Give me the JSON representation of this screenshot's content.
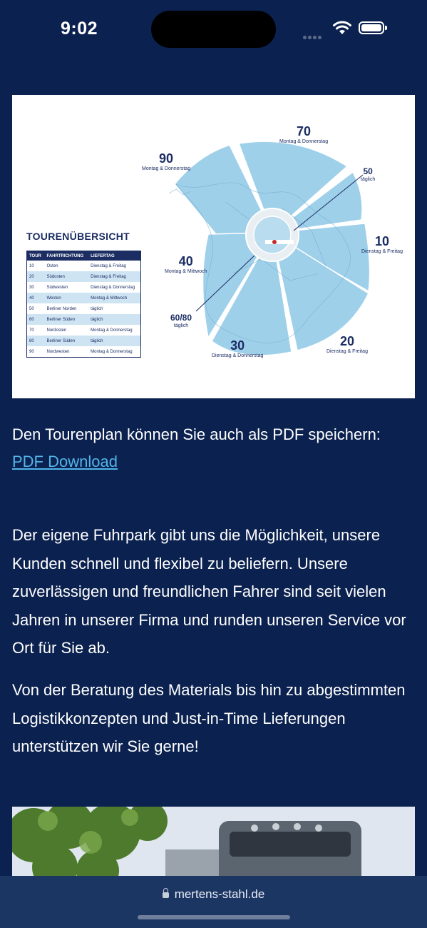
{
  "status_bar": {
    "time": "9:02"
  },
  "map": {
    "title": "TOURENÜBERSICHT",
    "table": {
      "headers": [
        "TOUR",
        "FAHRTRICHTUNG",
        "LIEFERTAG"
      ],
      "rows": [
        [
          "10",
          "Osten",
          "Dienstag & Freitag"
        ],
        [
          "20",
          "Südosten",
          "Dienstag & Freitag"
        ],
        [
          "30",
          "Südwesten",
          "Dienstag & Donnerstag"
        ],
        [
          "40",
          "Westen",
          "Montag & Mittwoch"
        ],
        [
          "50",
          "Berliner Norden",
          "täglich"
        ],
        [
          "60",
          "Berliner Süden",
          "täglich"
        ],
        [
          "70",
          "Nordosten",
          "Montag & Donnerstag"
        ],
        [
          "80",
          "Berliner Süden",
          "täglich"
        ],
        [
          "90",
          "Nordwesten",
          "Montag & Donnerstag"
        ]
      ]
    },
    "labels": {
      "t70": {
        "num": "70",
        "day": "Montag & Donnerstag"
      },
      "t90": {
        "num": "90",
        "day": "Montag & Donnerstag"
      },
      "t50": {
        "num": "50",
        "day": "täglich"
      },
      "t10": {
        "num": "10",
        "day": "Dienstag & Freitag"
      },
      "t40": {
        "num": "40",
        "day": "Montag & Mittwoch"
      },
      "t6080": {
        "num": "60/80",
        "day": "täglich"
      },
      "t30": {
        "num": "30",
        "day": "Dienstag & Donnerstag"
      },
      "t20": {
        "num": "20",
        "day": "Dienstag & Freitag"
      }
    }
  },
  "pdf": {
    "text": "Den Tourenplan können Sie auch als PDF speichern: ",
    "link_label": "PDF Download"
  },
  "paragraphs": {
    "p1": "Der eigene Fuhrpark gibt uns die Möglichkeit, unsere Kunden schnell und flexibel zu beliefern. Unsere zuverlässigen und freundlichen Fahrer sind seit vielen Jahren in unserer Firma und runden unseren Service vor Ort für Sie ab.",
    "p2": "Von der Beratung des Materials bis hin zu abgestimmten Logistikkonzepten und Just-in-Time Lieferungen unterstützen wir Sie gerne!"
  },
  "browser": {
    "url": "mertens-stahl.de"
  },
  "colors": {
    "background": "#0b214f",
    "link": "#52b4e8",
    "map_navy": "#1b2d63",
    "map_sector": "#9fd0ea"
  }
}
